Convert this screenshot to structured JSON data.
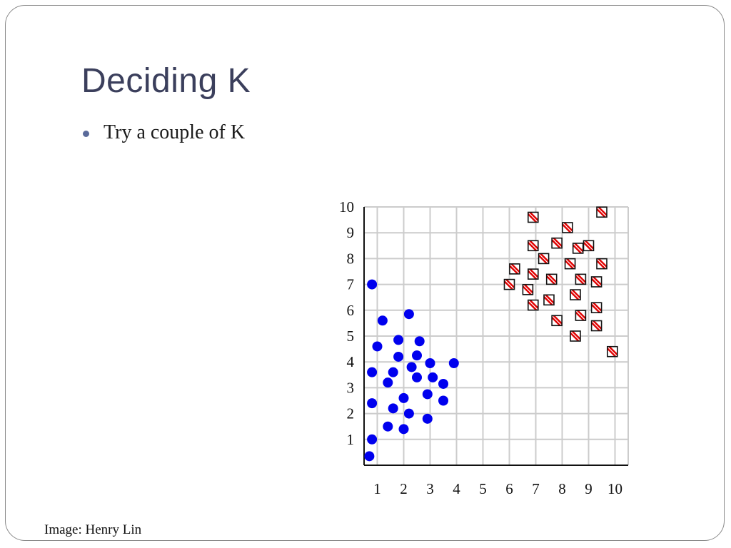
{
  "slide": {
    "title": "Deciding K",
    "bullets": [
      "Try a couple of K"
    ],
    "credit": "Image: Henry Lin"
  },
  "colors": {
    "title": "#3b3f5c",
    "bullet": "#5a6a9a",
    "cluster_a": "#0000ee",
    "cluster_b": "#e00000",
    "grid": "#cccccc"
  },
  "chart_data": {
    "type": "scatter",
    "title": "",
    "xlabel": "",
    "ylabel": "",
    "xlim": [
      0.5,
      10.5
    ],
    "ylim": [
      0,
      10
    ],
    "x_ticks": [
      "1",
      "2",
      "3",
      "4",
      "5",
      "6",
      "7",
      "8",
      "9",
      "10"
    ],
    "y_ticks": [
      "1",
      "2",
      "3",
      "4",
      "5",
      "6",
      "7",
      "8",
      "9",
      "10"
    ],
    "grid": true,
    "series": [
      {
        "marker": "circle",
        "color": "#0000ee",
        "points": [
          [
            0.8,
            7.0
          ],
          [
            1.2,
            5.6
          ],
          [
            2.2,
            5.85
          ],
          [
            1.0,
            4.6
          ],
          [
            1.8,
            4.85
          ],
          [
            2.6,
            4.8
          ],
          [
            1.8,
            4.2
          ],
          [
            2.5,
            4.25
          ],
          [
            2.3,
            3.8
          ],
          [
            3.0,
            3.95
          ],
          [
            3.9,
            3.95
          ],
          [
            0.8,
            3.6
          ],
          [
            1.6,
            3.6
          ],
          [
            1.4,
            3.2
          ],
          [
            2.5,
            3.4
          ],
          [
            3.1,
            3.4
          ],
          [
            3.5,
            3.15
          ],
          [
            2.0,
            2.6
          ],
          [
            2.9,
            2.75
          ],
          [
            3.5,
            2.5
          ],
          [
            0.8,
            2.4
          ],
          [
            1.6,
            2.2
          ],
          [
            2.2,
            2.0
          ],
          [
            2.9,
            1.8
          ],
          [
            1.4,
            1.5
          ],
          [
            2.0,
            1.4
          ],
          [
            0.8,
            1.0
          ],
          [
            0.7,
            0.35
          ]
        ]
      },
      {
        "marker": "square-hatched",
        "color": "#e00000",
        "points": [
          [
            6.9,
            9.6
          ],
          [
            9.5,
            9.8
          ],
          [
            8.2,
            9.2
          ],
          [
            6.9,
            8.5
          ],
          [
            7.8,
            8.6
          ],
          [
            8.6,
            8.4
          ],
          [
            9.0,
            8.5
          ],
          [
            7.3,
            8.0
          ],
          [
            8.3,
            7.8
          ],
          [
            9.5,
            7.8
          ],
          [
            6.2,
            7.6
          ],
          [
            6.9,
            7.4
          ],
          [
            7.6,
            7.2
          ],
          [
            8.7,
            7.2
          ],
          [
            9.3,
            7.1
          ],
          [
            6.0,
            7.0
          ],
          [
            6.7,
            6.8
          ],
          [
            8.5,
            6.6
          ],
          [
            7.5,
            6.4
          ],
          [
            6.9,
            6.2
          ],
          [
            9.3,
            6.1
          ],
          [
            8.7,
            5.8
          ],
          [
            7.8,
            5.6
          ],
          [
            9.3,
            5.4
          ],
          [
            8.5,
            5.0
          ],
          [
            9.9,
            4.4
          ]
        ]
      }
    ]
  }
}
